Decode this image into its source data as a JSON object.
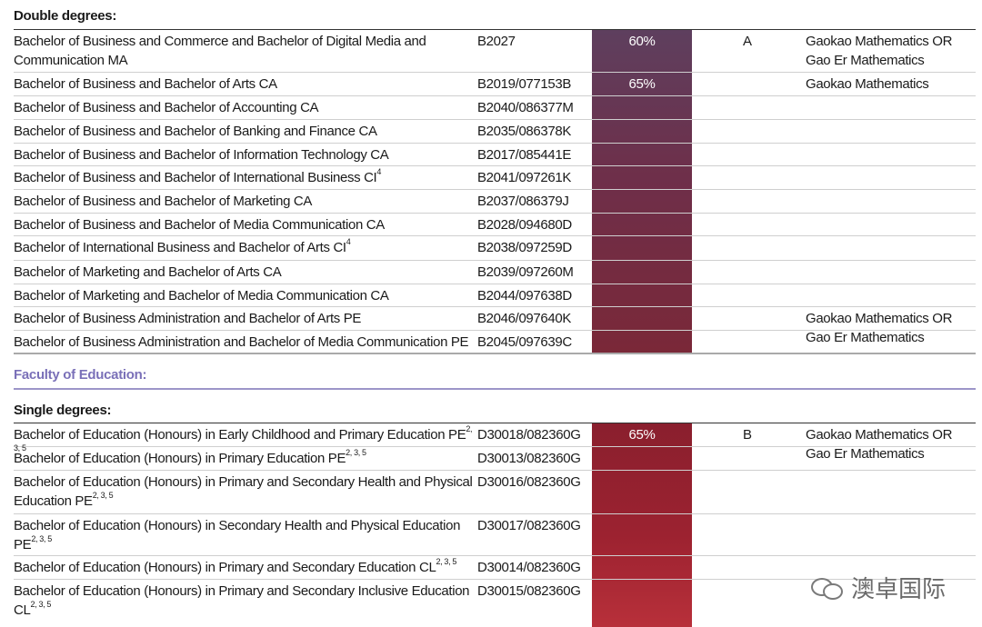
{
  "double": {
    "heading": "Double degrees:",
    "rows": [
      {
        "course": "Bachelor of Business and Commerce and Bachelor of Digital Media and Communication  MA",
        "code": "B2027",
        "score": "60%",
        "band": "A",
        "prereq": "Gaokao Mathematics OR Gao Er Mathematics"
      },
      {
        "course": "Bachelor of Business and Bachelor of Arts  CA",
        "code": "B2019/077153B",
        "score": "65%",
        "band": "",
        "prereq": "Gaokao Mathematics"
      },
      {
        "course": "Bachelor of Business and Bachelor of Accounting  CA",
        "code": "B2040/086377M",
        "score": "",
        "band": "",
        "prereq": ""
      },
      {
        "course": "Bachelor of Business and Bachelor of Banking and Finance  CA",
        "code": "B2035/086378K",
        "score": "",
        "band": "",
        "prereq": ""
      },
      {
        "course": "Bachelor of Business and Bachelor of Information Technology  CA",
        "code": "B2017/085441E",
        "score": "",
        "band": "",
        "prereq": ""
      },
      {
        "course": "Bachelor of Business and Bachelor of International Business  CI",
        "sup": "4",
        "code": "B2041/097261K",
        "score": "",
        "band": "",
        "prereq": ""
      },
      {
        "course": "Bachelor of Business and Bachelor of Marketing  CA",
        "code": "B2037/086379J",
        "score": "",
        "band": "",
        "prereq": ""
      },
      {
        "course": "Bachelor of Business and Bachelor of Media Communication  CA",
        "code": "B2028/094680D",
        "score": "",
        "band": "",
        "prereq": ""
      },
      {
        "course": "Bachelor of International Business and Bachelor of Arts  CI",
        "sup": "4",
        "code": "B2038/097259D",
        "score": "",
        "band": "",
        "prereq": ""
      },
      {
        "course": "Bachelor of Marketing and Bachelor of Arts  CA",
        "code": "B2039/097260M",
        "score": "",
        "band": "",
        "prereq": ""
      },
      {
        "course": "Bachelor of Marketing and Bachelor of Media Communication  CA",
        "code": "B2044/097638D",
        "score": "",
        "band": "",
        "prereq": ""
      },
      {
        "course": "Bachelor of Business Administration and Bachelor of Arts  PE",
        "code": "B2046/097640K",
        "score": "",
        "band": "",
        "prereq": "Gaokao Mathematics OR Gao Er Mathematics"
      },
      {
        "course": "Bachelor of Business Administration and Bachelor of Media Communication  PE",
        "code": "B2045/097639C",
        "score": "",
        "band": "",
        "prereq": ""
      }
    ]
  },
  "faculty": {
    "heading": "Faculty of Education:"
  },
  "single": {
    "heading": "Single degrees:",
    "rows": [
      {
        "course": "Bachelor of Education (Honours) in Early Childhood and Primary Education  PE",
        "sup": "2, 3, 5",
        "code": "D30018/082360G",
        "score": "65%",
        "band": "B",
        "prereq": "Gaokao Mathematics OR Gao Er Mathematics"
      },
      {
        "course": "Bachelor of Education (Honours) in Primary Education  PE",
        "sup": "2, 3, 5",
        "code": "D30013/082360G",
        "score": "",
        "band": "",
        "prereq": ""
      },
      {
        "course": "Bachelor of Education (Honours) in Primary and Secondary Health and Physical Education  PE",
        "sup": "2, 3, 5",
        "code": "D30016/082360G",
        "score": "",
        "band": "",
        "prereq": ""
      },
      {
        "course": "Bachelor of Education (Honours) in Secondary Health and Physical Education PE",
        "sup": "2, 3, 5",
        "code": "D30017/082360G",
        "score": "",
        "band": "",
        "prereq": ""
      },
      {
        "course": "Bachelor of Education (Honours) in Primary and Secondary Education  CL",
        "sup": "2, 3, 5",
        "code": "D30014/082360G",
        "score": "",
        "band": "",
        "prereq": ""
      },
      {
        "course": "Bachelor of Education (Honours) in Primary and Secondary Inclusive Education CL",
        "sup": "2, 3, 5",
        "code": "D30015/082360G",
        "score": "",
        "band": "",
        "prereq": ""
      }
    ]
  },
  "watermark": {
    "text": "澳卓国际",
    "icon": "wechat-icon"
  },
  "colors": {
    "faculty_heading": "#7a70b8",
    "score_col_top": "#5e3f5e",
    "score_col_bottom": "#b8303a"
  }
}
